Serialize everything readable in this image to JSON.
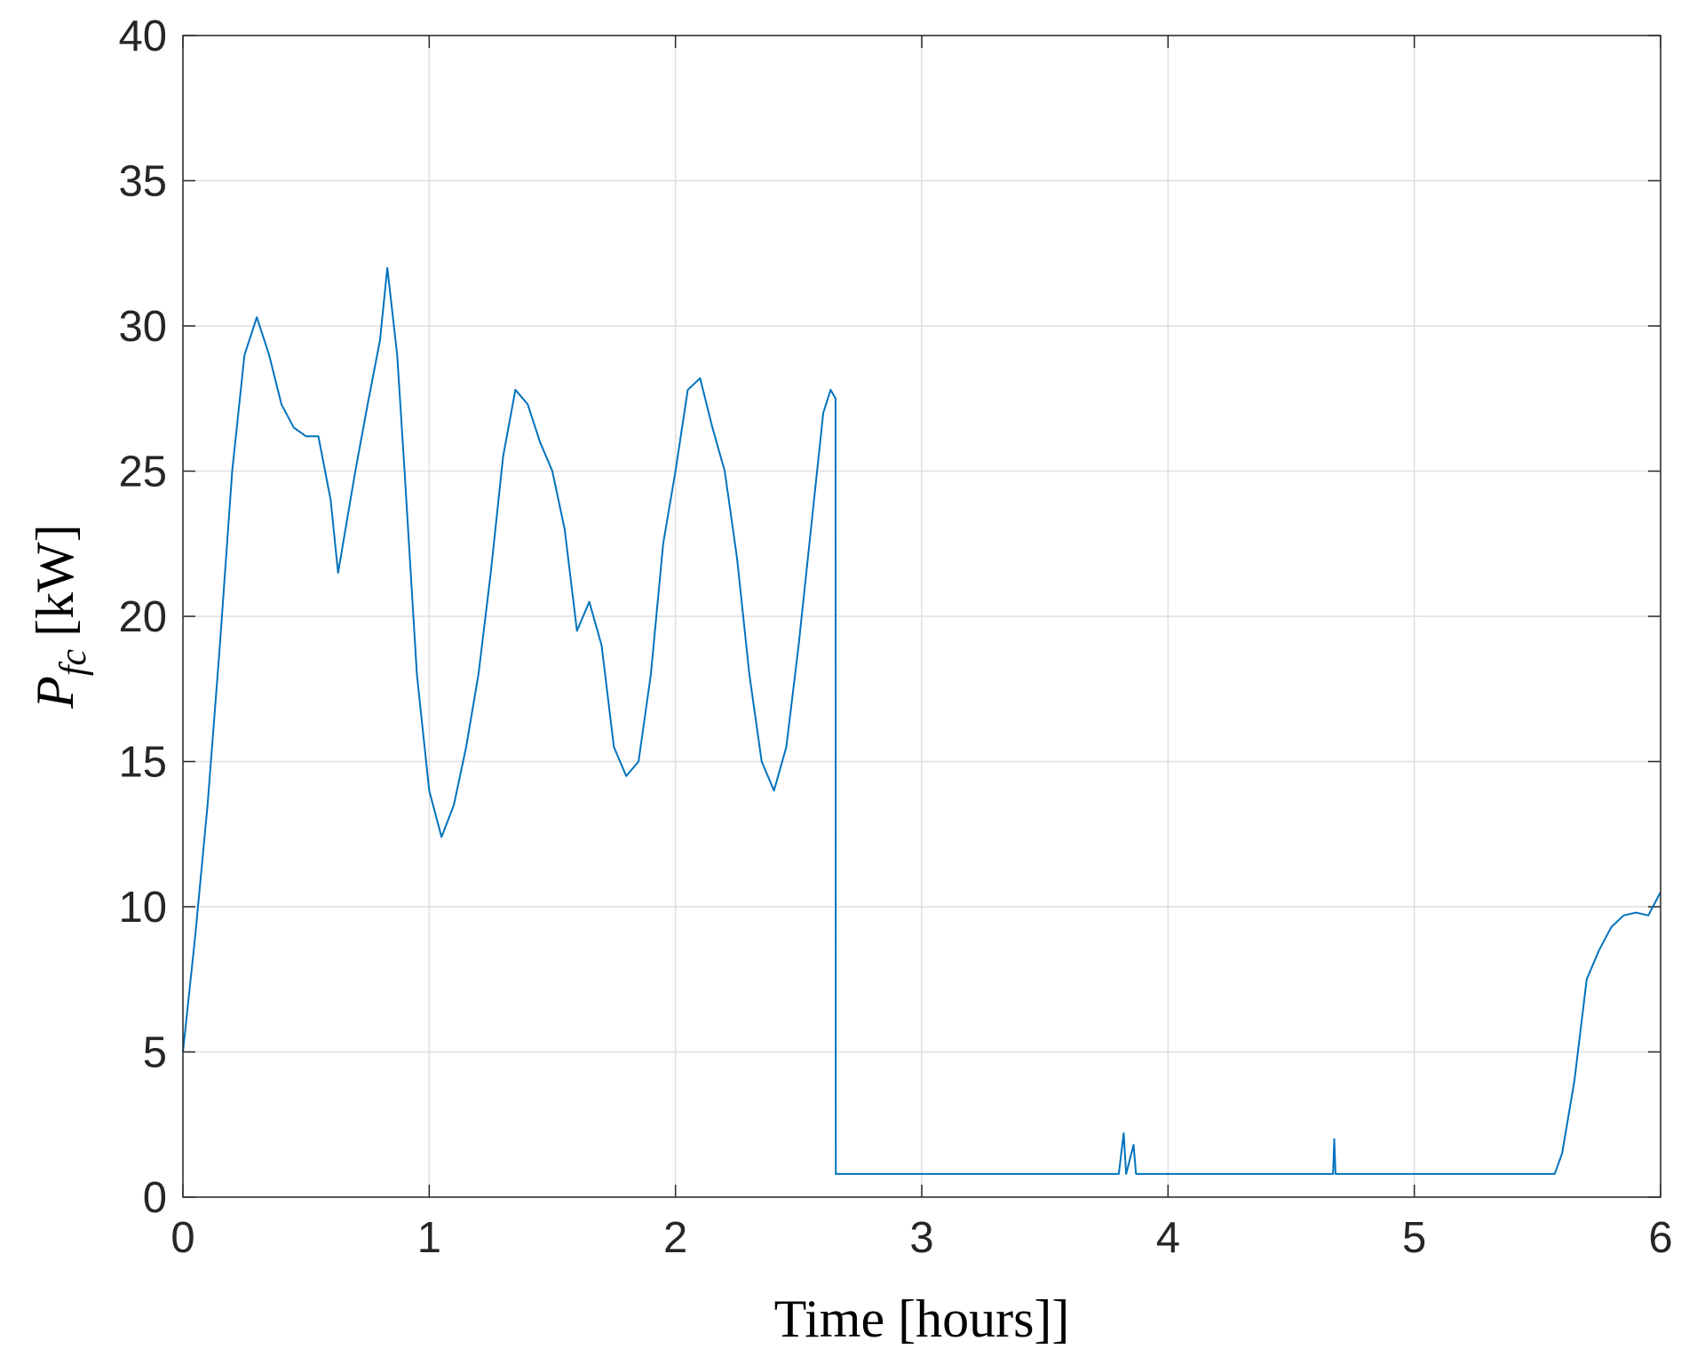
{
  "chart_data": {
    "type": "line",
    "xlabel": "Time [hours]]",
    "ylabel": {
      "symbol": "P",
      "subscript": "fc",
      "unit": "[kW]"
    },
    "x": [
      0,
      0.05,
      0.1,
      0.15,
      0.2,
      0.25,
      0.3,
      0.35,
      0.4,
      0.45,
      0.5,
      0.55,
      0.6,
      0.63,
      0.7,
      0.75,
      0.8,
      0.83,
      0.87,
      0.9,
      0.95,
      1.0,
      1.05,
      1.1,
      1.15,
      1.2,
      1.25,
      1.3,
      1.35,
      1.4,
      1.45,
      1.5,
      1.55,
      1.6,
      1.65,
      1.7,
      1.75,
      1.8,
      1.85,
      1.9,
      1.95,
      2.0,
      2.05,
      2.1,
      2.15,
      2.2,
      2.25,
      2.3,
      2.35,
      2.4,
      2.45,
      2.5,
      2.55,
      2.6,
      2.63,
      2.65,
      2.651,
      3.8,
      3.82,
      3.83,
      3.86,
      3.87,
      4.67,
      4.675,
      4.68,
      5.57,
      5.6,
      5.65,
      5.7,
      5.75,
      5.8,
      5.85,
      5.9,
      5.95,
      6.0
    ],
    "series": [
      {
        "name": "Pfc",
        "color": "#0072bd",
        "values": [
          5,
          9,
          13.5,
          19,
          25,
          29,
          30.3,
          29,
          27.3,
          26.5,
          26.2,
          26.2,
          24,
          21.5,
          25,
          27.3,
          29.5,
          32,
          29,
          25,
          18,
          14,
          12.4,
          13.5,
          15.5,
          18,
          21.5,
          25.5,
          27.8,
          27.3,
          26,
          25,
          23,
          19.5,
          20.5,
          19,
          15.5,
          14.5,
          15,
          18,
          22.5,
          25,
          27.8,
          28.2,
          26.5,
          25,
          22,
          18,
          15,
          14,
          15.5,
          19,
          23,
          27,
          27.8,
          27.5,
          0.8,
          0.8,
          2.2,
          0.8,
          1.8,
          0.8,
          0.8,
          2.0,
          0.8,
          0.8,
          1.5,
          4,
          7.5,
          8.5,
          9.3,
          9.7,
          9.8,
          9.7,
          10.5
        ]
      }
    ],
    "xlim": [
      0,
      6
    ],
    "xticks": [
      0,
      1,
      2,
      3,
      4,
      5,
      6
    ],
    "ylim": [
      0,
      40
    ],
    "yticks": [
      0,
      5,
      10,
      15,
      20,
      25,
      30,
      35,
      40
    ],
    "grid": true
  }
}
